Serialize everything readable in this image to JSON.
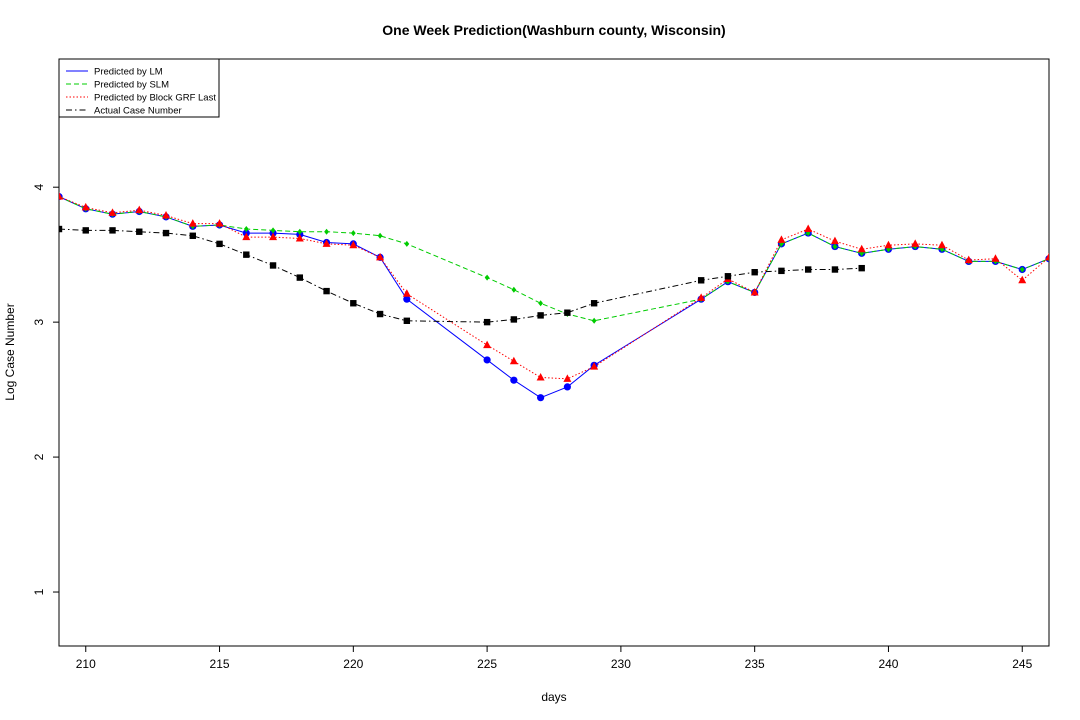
{
  "chart_data": {
    "type": "line",
    "title": "One Week Prediction(Washburn county, Wisconsin)",
    "xlabel": "days",
    "ylabel": "Log Case Number",
    "xlim": [
      209,
      246
    ],
    "ylim": [
      0.6,
      4.95
    ],
    "xticks": [
      210,
      215,
      220,
      225,
      230,
      235,
      240,
      245
    ],
    "yticks": [
      1,
      2,
      3,
      4
    ],
    "legend_position": "top-left",
    "grid": false,
    "series": [
      {
        "name": "Predicted by LM",
        "color": "#0000ff",
        "line_style": "solid",
        "marker": "circle",
        "points": [
          [
            209,
            3.93
          ],
          [
            210,
            3.84
          ],
          [
            211,
            3.8
          ],
          [
            212,
            3.82
          ],
          [
            213,
            3.78
          ],
          [
            214,
            3.71
          ],
          [
            215,
            3.72
          ],
          [
            216,
            3.66
          ],
          [
            217,
            3.66
          ],
          [
            218,
            3.65
          ],
          [
            219,
            3.59
          ],
          [
            220,
            3.58
          ],
          [
            221,
            3.48
          ],
          [
            222,
            3.17
          ],
          [
            225,
            2.72
          ],
          [
            226,
            2.57
          ],
          [
            227,
            2.44
          ],
          [
            228,
            2.52
          ],
          [
            229,
            2.68
          ],
          [
            233,
            3.17
          ],
          [
            234,
            3.3
          ],
          [
            235,
            3.22
          ],
          [
            236,
            3.58
          ],
          [
            237,
            3.66
          ],
          [
            238,
            3.56
          ],
          [
            239,
            3.51
          ],
          [
            240,
            3.54
          ],
          [
            241,
            3.56
          ],
          [
            242,
            3.54
          ],
          [
            243,
            3.45
          ],
          [
            244,
            3.45
          ],
          [
            245,
            3.39
          ],
          [
            246,
            3.47
          ]
        ]
      },
      {
        "name": "Predicted by SLM",
        "color": "#00cc00",
        "line_style": "dashed",
        "marker": "diamond",
        "points": [
          [
            209,
            3.93
          ],
          [
            210,
            3.84
          ],
          [
            211,
            3.8
          ],
          [
            212,
            3.82
          ],
          [
            213,
            3.78
          ],
          [
            214,
            3.71
          ],
          [
            215,
            3.72
          ],
          [
            216,
            3.69
          ],
          [
            217,
            3.68
          ],
          [
            218,
            3.67
          ],
          [
            219,
            3.67
          ],
          [
            220,
            3.66
          ],
          [
            221,
            3.64
          ],
          [
            222,
            3.58
          ],
          [
            225,
            3.33
          ],
          [
            226,
            3.24
          ],
          [
            227,
            3.14
          ],
          [
            228,
            3.06
          ],
          [
            229,
            3.01
          ],
          [
            233,
            3.17
          ],
          [
            234,
            3.3
          ],
          [
            235,
            3.22
          ],
          [
            236,
            3.58
          ],
          [
            237,
            3.66
          ],
          [
            238,
            3.56
          ],
          [
            239,
            3.51
          ],
          [
            240,
            3.54
          ],
          [
            241,
            3.56
          ],
          [
            242,
            3.54
          ],
          [
            243,
            3.45
          ],
          [
            244,
            3.45
          ],
          [
            245,
            3.39
          ],
          [
            246,
            3.47
          ]
        ]
      },
      {
        "name": "Predicted by Block GRF Last",
        "color": "#ff0000",
        "line_style": "dotted",
        "marker": "triangle",
        "points": [
          [
            209,
            3.93
          ],
          [
            210,
            3.85
          ],
          [
            211,
            3.81
          ],
          [
            212,
            3.83
          ],
          [
            213,
            3.79
          ],
          [
            214,
            3.73
          ],
          [
            215,
            3.73
          ],
          [
            216,
            3.63
          ],
          [
            217,
            3.63
          ],
          [
            218,
            3.62
          ],
          [
            219,
            3.58
          ],
          [
            220,
            3.57
          ],
          [
            221,
            3.48
          ],
          [
            222,
            3.21
          ],
          [
            225,
            2.83
          ],
          [
            226,
            2.71
          ],
          [
            227,
            2.59
          ],
          [
            228,
            2.58
          ],
          [
            229,
            2.67
          ],
          [
            233,
            3.18
          ],
          [
            234,
            3.32
          ],
          [
            235,
            3.22
          ],
          [
            236,
            3.61
          ],
          [
            237,
            3.69
          ],
          [
            238,
            3.6
          ],
          [
            239,
            3.54
          ],
          [
            240,
            3.57
          ],
          [
            241,
            3.58
          ],
          [
            242,
            3.57
          ],
          [
            243,
            3.46
          ],
          [
            244,
            3.47
          ],
          [
            245,
            3.31
          ],
          [
            246,
            3.48
          ]
        ]
      },
      {
        "name": "Actual Case Number",
        "color": "#000000",
        "line_style": "dashdot",
        "marker": "square",
        "points": [
          [
            209,
            3.69
          ],
          [
            210,
            3.68
          ],
          [
            211,
            3.68
          ],
          [
            212,
            3.67
          ],
          [
            213,
            3.66
          ],
          [
            214,
            3.64
          ],
          [
            215,
            3.58
          ],
          [
            216,
            3.5
          ],
          [
            217,
            3.42
          ],
          [
            218,
            3.33
          ],
          [
            219,
            3.23
          ],
          [
            220,
            3.14
          ],
          [
            221,
            3.06
          ],
          [
            222,
            3.01
          ],
          [
            225,
            3.0
          ],
          [
            226,
            3.02
          ],
          [
            227,
            3.05
          ],
          [
            228,
            3.07
          ],
          [
            229,
            3.14
          ],
          [
            233,
            3.31
          ],
          [
            234,
            3.34
          ],
          [
            235,
            3.37
          ],
          [
            236,
            3.38
          ],
          [
            237,
            3.39
          ],
          [
            238,
            3.39
          ],
          [
            239,
            3.4
          ]
        ]
      }
    ]
  }
}
